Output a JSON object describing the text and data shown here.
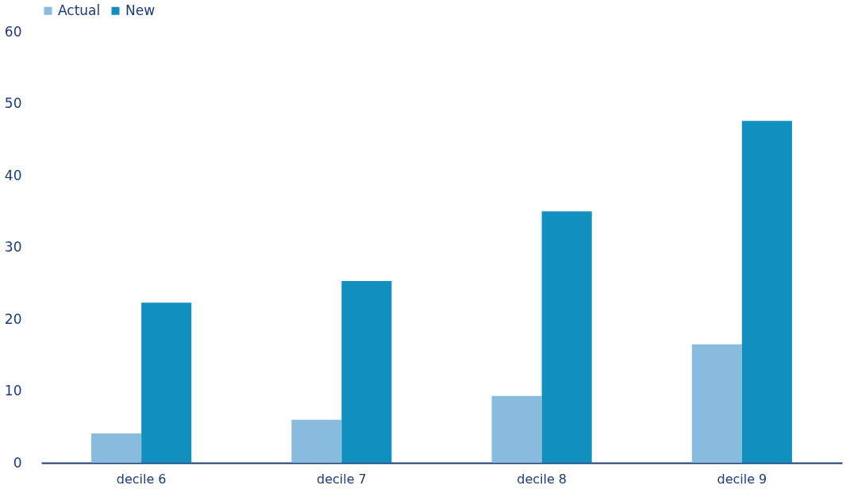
{
  "chart_data": {
    "type": "bar",
    "categories": [
      "decile 6",
      "decile 7",
      "decile 8",
      "decile 9"
    ],
    "series": [
      {
        "name": "Actual",
        "color": "#88bbdd",
        "values": [
          4.1,
          6.0,
          9.3,
          16.5
        ]
      },
      {
        "name": "New",
        "color": "#1190bf",
        "values": [
          22.3,
          25.3,
          35.0,
          47.6
        ]
      }
    ],
    "ylim": [
      0,
      60
    ],
    "yticks": [
      0,
      10,
      20,
      30,
      40,
      50,
      60
    ],
    "grid": false,
    "legend": "top"
  }
}
